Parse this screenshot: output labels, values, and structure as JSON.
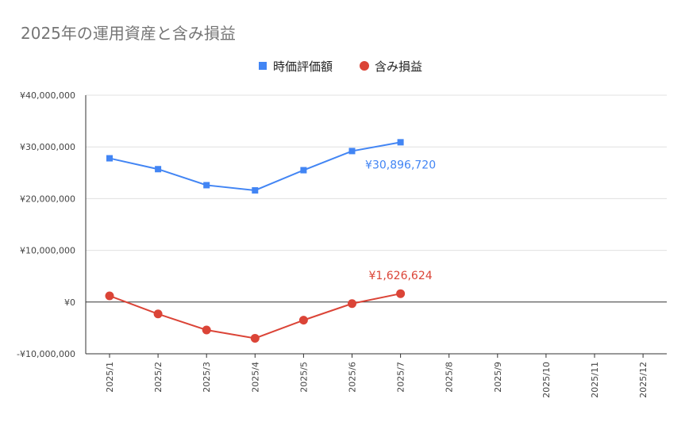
{
  "chart_data": {
    "type": "line",
    "title": "2025年の運用資産と含み損益",
    "categories": [
      "2025/1",
      "2025/2",
      "2025/3",
      "2025/4",
      "2025/5",
      "2025/6",
      "2025/7",
      "2025/8",
      "2025/9",
      "2025/10",
      "2025/11",
      "2025/12"
    ],
    "series": [
      {
        "name": "時価評価額",
        "color": "#4285f4",
        "marker": "square",
        "values": [
          27800000,
          25700000,
          22600000,
          21600000,
          25500000,
          29200000,
          30896720,
          null,
          null,
          null,
          null,
          null
        ],
        "end_label": "¥30,896,720"
      },
      {
        "name": "含み損益",
        "color": "#db4437",
        "marker": "circle",
        "values": [
          1200000,
          -2300000,
          -5400000,
          -7000000,
          -3500000,
          -300000,
          1626624,
          null,
          null,
          null,
          null,
          null
        ],
        "end_label": "¥1,626,624"
      }
    ],
    "ylim": [
      -10000000,
      40000000
    ],
    "yticks": [
      -10000000,
      0,
      10000000,
      20000000,
      30000000,
      40000000
    ],
    "ytick_labels": [
      "-¥10,000,000",
      "¥0",
      "¥10,000,000",
      "¥20,000,000",
      "¥30,000,000",
      "¥40,000,000"
    ],
    "grid": true,
    "legend_position": "top-center"
  }
}
